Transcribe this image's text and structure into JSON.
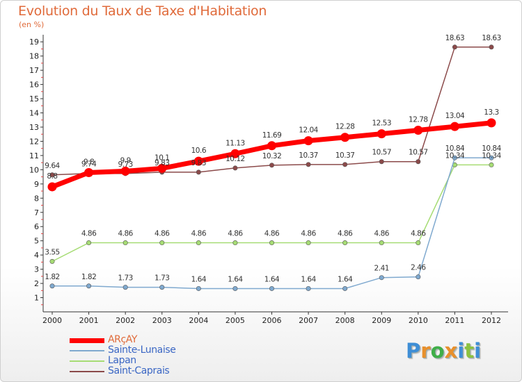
{
  "title": "Evolution du Taux de Taxe d'Habitation",
  "subtitle": "(en %)",
  "logo": {
    "letters": [
      "P",
      "r",
      "o",
      "x",
      "i",
      "t",
      "i"
    ],
    "colors": [
      "#3e8ed6",
      "#e8902c",
      "#3fae49",
      "#e8902c",
      "#3e8ed6",
      "#8cc23f",
      "#3e8ed6"
    ]
  },
  "chart_data": {
    "type": "line",
    "title": "Evolution du Taux de Taxe d'Habitation",
    "ylabel": "(en %)",
    "xlabel": "",
    "x": [
      "2000",
      "2001",
      "2002",
      "2003",
      "2004",
      "2005",
      "2006",
      "2007",
      "2008",
      "2009",
      "2010",
      "2011",
      "2012"
    ],
    "ylim": [
      0,
      19.5
    ],
    "yticks": [
      "1",
      "2",
      "3",
      "4",
      "5",
      "6",
      "7",
      "8",
      "9",
      "10",
      "11",
      "12",
      "13",
      "14",
      "15",
      "16",
      "17",
      "18",
      "19"
    ],
    "grid": false,
    "legend": "bottom-left",
    "series": [
      {
        "name": "ARçAY",
        "color": "#ff0000",
        "values": [
          8.8,
          9.8,
          9.9,
          10.1,
          10.6,
          11.13,
          11.69,
          12.04,
          12.28,
          12.53,
          12.78,
          13.04,
          13.3
        ],
        "labels": [
          "8.8",
          "9.8",
          "9.9",
          "10.1",
          "10.6",
          "11.13",
          "11.69",
          "12.04",
          "12.28",
          "12.53",
          "12.78",
          "13.04",
          "13.3"
        ]
      },
      {
        "name": "Sainte-Lunaise",
        "color": "#7fa9cf",
        "values": [
          1.82,
          1.82,
          1.73,
          1.73,
          1.64,
          1.64,
          1.64,
          1.64,
          1.64,
          2.41,
          2.46,
          10.84,
          10.84
        ],
        "labels": [
          "1.82",
          "1.82",
          "1.73",
          "1.73",
          "1.64",
          "1.64",
          "1.64",
          "1.64",
          "1.64",
          "2.41",
          "2.46",
          "10.84",
          "10.84"
        ]
      },
      {
        "name": "Lapan",
        "color": "#a6dc74",
        "values": [
          3.55,
          4.86,
          4.86,
          4.86,
          4.86,
          4.86,
          4.86,
          4.86,
          4.86,
          4.86,
          4.86,
          10.34,
          10.34
        ],
        "labels": [
          "3.55",
          "4.86",
          "4.86",
          "4.86",
          "4.86",
          "4.86",
          "4.86",
          "4.86",
          "4.86",
          "4.86",
          "4.86",
          "10.34",
          "10.34"
        ]
      },
      {
        "name": "Saint-Caprais",
        "color": "#8b4a4a",
        "values": [
          9.64,
          9.74,
          9.73,
          9.83,
          9.83,
          10.12,
          10.32,
          10.37,
          10.37,
          10.57,
          10.57,
          18.63,
          18.63
        ],
        "labels": [
          "9.64",
          "9.74",
          "9.73",
          "9.83",
          "9.83",
          "10.12",
          "10.32",
          "10.37",
          "10.37",
          "10.57",
          "10.57",
          "18.63",
          "18.63"
        ]
      }
    ]
  }
}
